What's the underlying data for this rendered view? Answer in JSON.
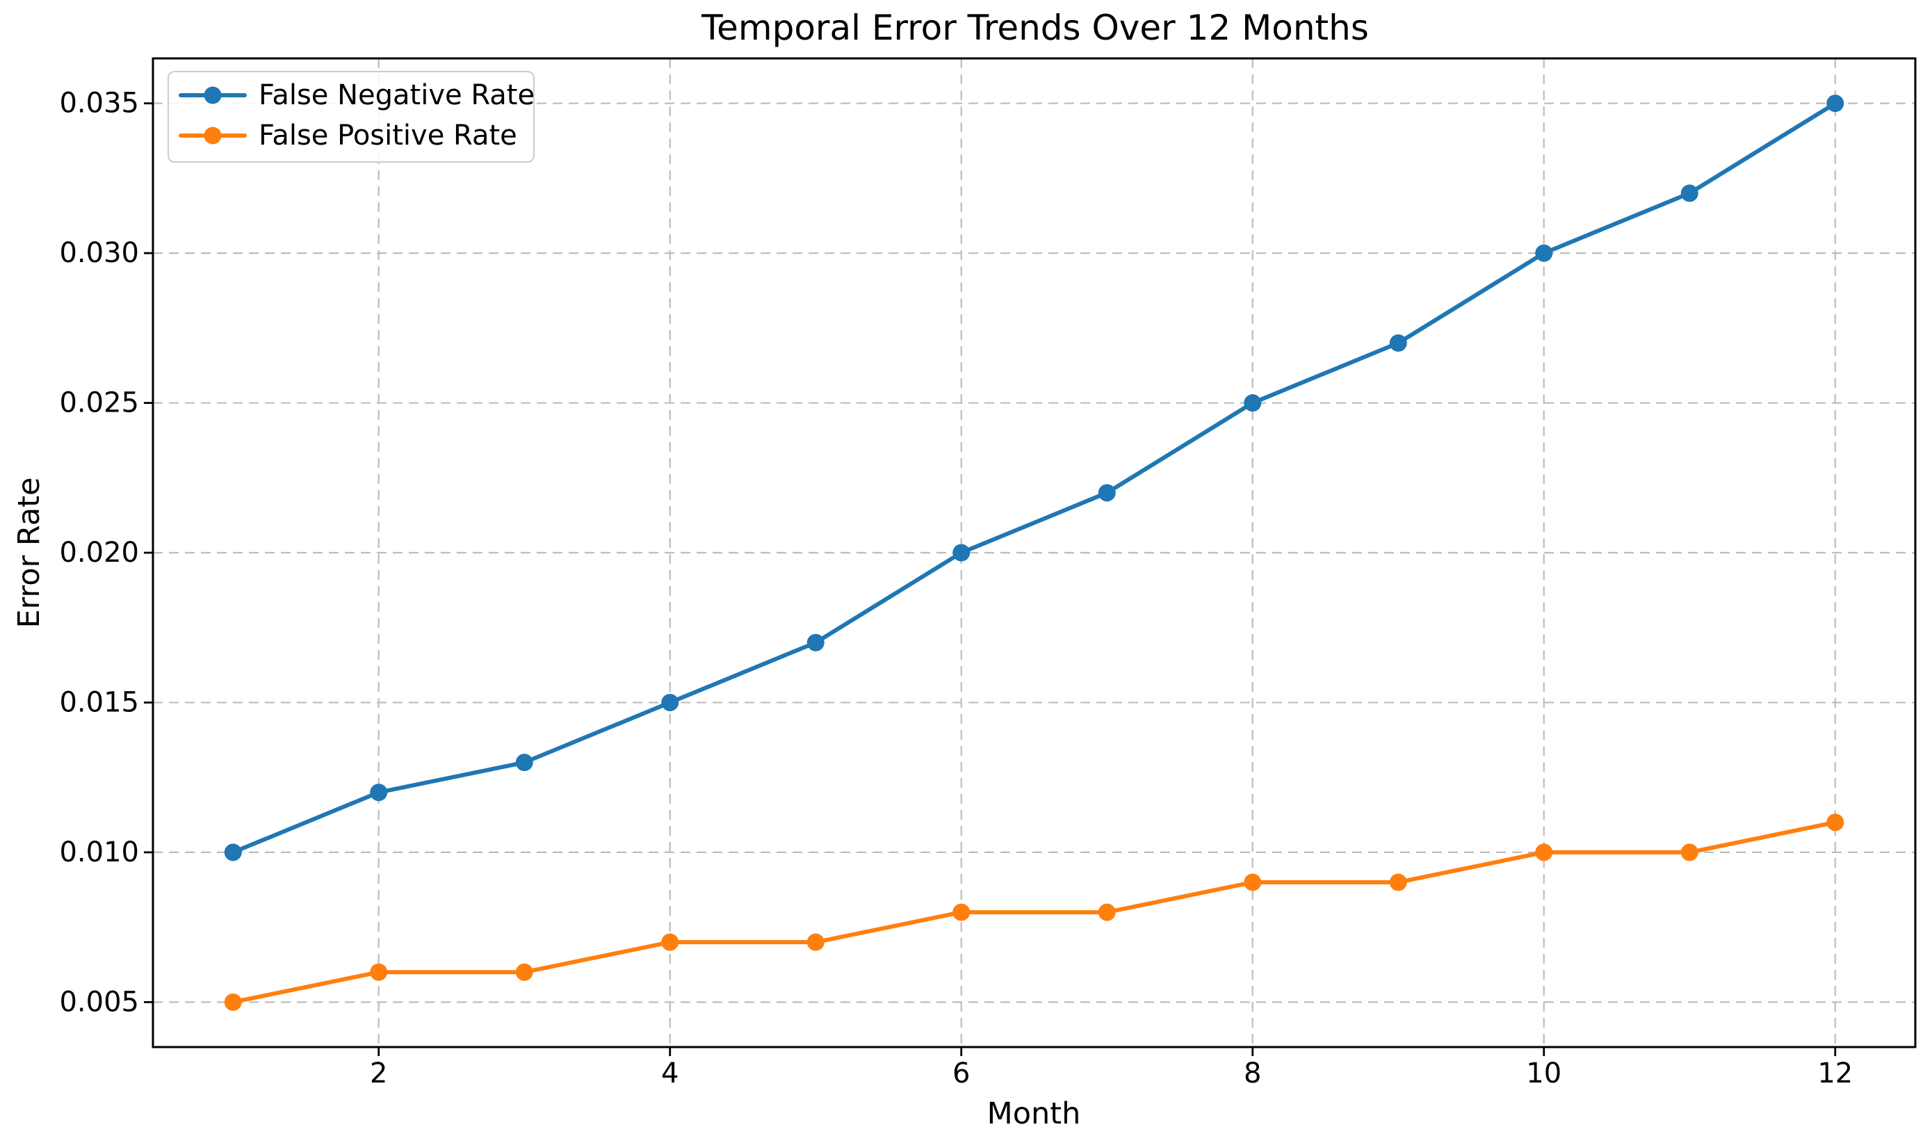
{
  "chart_data": {
    "type": "line",
    "title": "Temporal Error Trends Over 12 Months",
    "xlabel": "Month",
    "ylabel": "Error Rate",
    "x": [
      1,
      2,
      3,
      4,
      5,
      6,
      7,
      8,
      9,
      10,
      11,
      12
    ],
    "series": [
      {
        "name": "False Negative Rate",
        "color": "#1f77b4",
        "marker": "circle",
        "values": [
          0.01,
          0.012,
          0.013,
          0.015,
          0.017,
          0.02,
          0.022,
          0.025,
          0.027,
          0.03,
          0.032,
          0.035
        ]
      },
      {
        "name": "False Positive Rate",
        "color": "#ff7f0e",
        "marker": "circle",
        "values": [
          0.005,
          0.006,
          0.006,
          0.007,
          0.007,
          0.008,
          0.008,
          0.009,
          0.009,
          0.01,
          0.01,
          0.011
        ]
      }
    ],
    "xlim": [
      0.45,
      12.55
    ],
    "ylim": [
      0.0035,
      0.0365
    ],
    "xticks": [
      2,
      4,
      6,
      8,
      10,
      12
    ],
    "xtick_labels": [
      "2",
      "4",
      "6",
      "8",
      "10",
      "12"
    ],
    "yticks": [
      0.005,
      0.01,
      0.015,
      0.02,
      0.025,
      0.03,
      0.035
    ],
    "ytick_labels": [
      "0.005",
      "0.010",
      "0.015",
      "0.020",
      "0.025",
      "0.030",
      "0.035"
    ],
    "grid": true,
    "grid_style": "dashed",
    "legend_position": "upper left",
    "colors": {
      "grid": "#bdbdbd",
      "spine": "#000000",
      "background": "#ffffff",
      "legend_border": "#cccccc",
      "text": "#000000"
    }
  }
}
